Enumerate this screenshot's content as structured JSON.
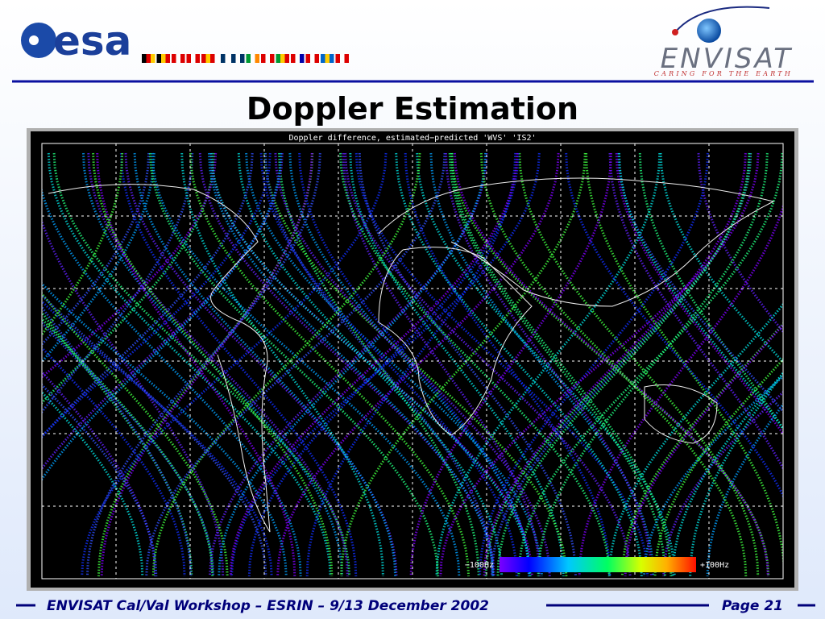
{
  "header": {
    "esa_logo": "esa",
    "envisat_logo": "ENVISAT",
    "envisat_tagline": "CARING FOR THE EARTH"
  },
  "title": "Doppler Estimation",
  "figure": {
    "title": "Doppler difference, estimated−predicted 'WVS' 'IS2'",
    "colorbar_min_label": "−100Hz",
    "colorbar_max_label": "+100Hz"
  },
  "footer": {
    "text": "ENVISAT Cal/Val Workshop – ESRIN – 9/13 December 2002",
    "page": "Page 21"
  }
}
